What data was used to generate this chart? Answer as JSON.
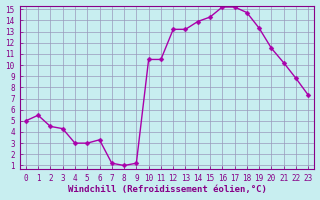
{
  "x": [
    0,
    1,
    2,
    3,
    4,
    5,
    6,
    7,
    8,
    9,
    10,
    11,
    12,
    13,
    14,
    15,
    16,
    17,
    18,
    19,
    20,
    21,
    22,
    23
  ],
  "y": [
    5.0,
    5.5,
    4.5,
    4.3,
    3.0,
    3.0,
    3.3,
    1.2,
    1.0,
    1.2,
    10.5,
    10.5,
    13.2,
    13.2,
    13.9,
    14.3,
    15.2,
    15.2,
    14.7,
    13.3,
    11.5,
    10.2,
    8.8,
    7.3
  ],
  "line_color": "#aa00aa",
  "marker_color": "#aa00aa",
  "bg_color": "#c8eef0",
  "grid_color": "#9999bb",
  "tick_color": "#880088",
  "label_color": "#880088",
  "xlabel": "Windchill (Refroidissement éolien,°C)",
  "ylim_min": 1,
  "ylim_max": 15,
  "xlim_min": -0.5,
  "xlim_max": 23.5,
  "yticks": [
    1,
    2,
    3,
    4,
    5,
    6,
    7,
    8,
    9,
    10,
    11,
    12,
    13,
    14,
    15
  ],
  "xticks": [
    0,
    1,
    2,
    3,
    4,
    5,
    6,
    7,
    8,
    9,
    10,
    11,
    12,
    13,
    14,
    15,
    16,
    17,
    18,
    19,
    20,
    21,
    22,
    23
  ],
  "marker_size": 2.5,
  "line_width": 1.0,
  "tick_labelsize": 5.5,
  "xlabel_fontsize": 6.5
}
